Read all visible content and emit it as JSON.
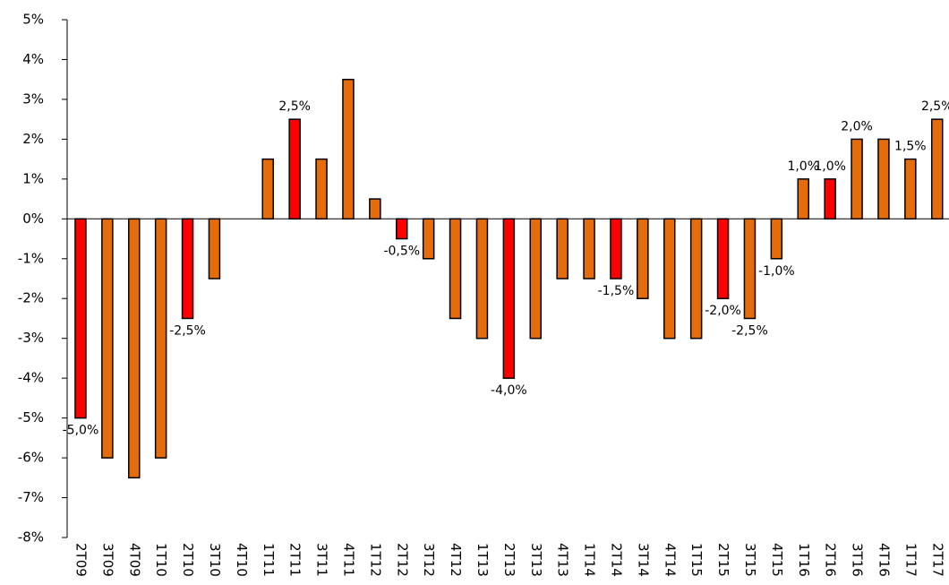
{
  "chart_data": {
    "type": "bar",
    "categories": [
      "2T09",
      "3T09",
      "4T09",
      "1T10",
      "2T10",
      "3T10",
      "4T10",
      "1T11",
      "2T11",
      "3T11",
      "4T11",
      "1T12",
      "2T12",
      "3T12",
      "4T12",
      "1T13",
      "2T13",
      "3T13",
      "4T13",
      "1T14",
      "2T14",
      "3T14",
      "4T14",
      "1T15",
      "2T15",
      "3T15",
      "4T15",
      "1T16",
      "2T16",
      "3T16",
      "4T16",
      "1T17",
      "2T17"
    ],
    "values": [
      -5,
      -6,
      -6.5,
      -6,
      -2.5,
      -1.5,
      0,
      1.5,
      2.5,
      1.5,
      3.5,
      0.5,
      -0.5,
      -1,
      -2.5,
      -3,
      -4,
      -3,
      -1.5,
      -1.5,
      -1.5,
      -2,
      -3,
      -3,
      -2,
      -2.5,
      -1,
      1,
      1,
      2,
      2,
      1.5,
      2.5
    ],
    "value_labels": [
      "-5,0%",
      null,
      null,
      null,
      "-2,5%",
      null,
      null,
      null,
      "2,5%",
      null,
      null,
      null,
      "-0,5%",
      null,
      null,
      null,
      "-4,0%",
      null,
      null,
      null,
      "-1,5%",
      null,
      null,
      null,
      "-2,0%",
      "-2,5%",
      "-1,0%",
      "1,0%",
      "1,0%",
      "2,0%",
      null,
      "1,5%",
      "2,5%"
    ],
    "colors": [
      "#ff0000",
      "#e46c0a",
      "#e46c0a",
      "#e46c0a",
      "#ff0000",
      "#e46c0a",
      "#e46c0a",
      "#e46c0a",
      "#ff0000",
      "#e46c0a",
      "#e46c0a",
      "#e46c0a",
      "#ff0000",
      "#e46c0a",
      "#e46c0a",
      "#e46c0a",
      "#ff0000",
      "#e46c0a",
      "#e46c0a",
      "#e46c0a",
      "#ff0000",
      "#e46c0a",
      "#e46c0a",
      "#e46c0a",
      "#ff0000",
      "#e46c0a",
      "#e46c0a",
      "#e46c0a",
      "#ff0000",
      "#e46c0a",
      "#e46c0a",
      "#e46c0a",
      "#e46c0a"
    ],
    "ylim": [
      -8,
      5
    ],
    "yticks": [
      {
        "value": -8,
        "label": "-8%"
      },
      {
        "value": -7,
        "label": "-7%"
      },
      {
        "value": -6,
        "label": "-6%"
      },
      {
        "value": -5,
        "label": "-5%"
      },
      {
        "value": -4,
        "label": "-4%"
      },
      {
        "value": -3,
        "label": "-3%"
      },
      {
        "value": -2,
        "label": "-2%"
      },
      {
        "value": -1,
        "label": "-1%"
      },
      {
        "value": 0,
        "label": "0%"
      },
      {
        "value": 1,
        "label": "1%"
      },
      {
        "value": 2,
        "label": "2%"
      },
      {
        "value": 3,
        "label": "3%"
      },
      {
        "value": 4,
        "label": "4%"
      },
      {
        "value": 5,
        "label": "5%"
      }
    ],
    "grid": false
  }
}
